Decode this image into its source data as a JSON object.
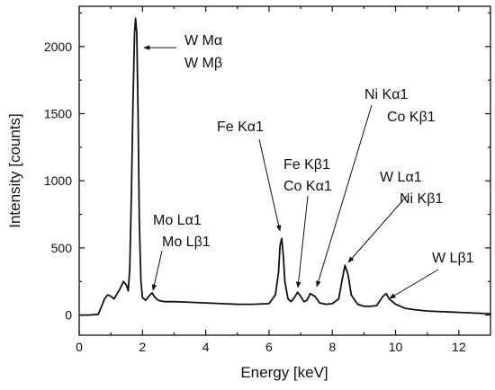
{
  "chart_data": {
    "type": "line",
    "title": "",
    "xlabel": "Energy [keV]",
    "ylabel": "Intensity [counts]",
    "xlim": [
      0,
      13
    ],
    "ylim": [
      -150,
      2300
    ],
    "xticks": [
      0,
      2,
      4,
      6,
      8,
      10,
      12
    ],
    "yticks": [
      0,
      500,
      1000,
      1500,
      2000
    ],
    "grid": false,
    "legend": "none",
    "series": [
      {
        "x": [
          0,
          0.3,
          0.6,
          0.7,
          0.8,
          0.9,
          1.0,
          1.1,
          1.2,
          1.3,
          1.4,
          1.5,
          1.55,
          1.6,
          1.65,
          1.7,
          1.75,
          1.78,
          1.82,
          1.86,
          1.9,
          1.95,
          2.0,
          2.05,
          2.1,
          2.2,
          2.3,
          2.4,
          2.5,
          2.7,
          3.0,
          3.5,
          4.0,
          4.5,
          5.0,
          5.5,
          6.0,
          6.2,
          6.3,
          6.35,
          6.4,
          6.45,
          6.5,
          6.6,
          6.7,
          6.8,
          6.9,
          7.0,
          7.1,
          7.2,
          7.3,
          7.45,
          7.6,
          7.8,
          8.0,
          8.2,
          8.3,
          8.4,
          8.5,
          8.6,
          8.8,
          9.0,
          9.2,
          9.4,
          9.6,
          9.7,
          9.8,
          10.0,
          10.3,
          10.6,
          11.0,
          11.5,
          12.0,
          12.5,
          13.0
        ],
        "values": [
          0,
          0,
          5,
          60,
          120,
          150,
          140,
          120,
          160,
          200,
          250,
          220,
          180,
          350,
          900,
          1600,
          2100,
          2210,
          2100,
          1500,
          700,
          250,
          130,
          120,
          110,
          140,
          165,
          130,
          110,
          100,
          100,
          95,
          90,
          85,
          80,
          80,
          85,
          150,
          320,
          520,
          570,
          450,
          250,
          120,
          100,
          130,
          170,
          140,
          100,
          110,
          160,
          140,
          90,
          80,
          85,
          120,
          250,
          370,
          300,
          150,
          80,
          65,
          65,
          70,
          140,
          160,
          120,
          80,
          50,
          40,
          30,
          25,
          20,
          15,
          10
        ]
      }
    ],
    "annotations": [
      {
        "line1": "W Mα",
        "line2": "W Mβ"
      },
      {
        "line1": "Mo Lα1",
        "line2": "Mo Lβ1"
      },
      {
        "line1": "Fe Kα1",
        "line2": ""
      },
      {
        "line1": "Fe Kβ1",
        "line2": "Co Kα1"
      },
      {
        "line1": "Ni Kα1",
        "line2": "Co Kβ1"
      },
      {
        "line1": "W Lα1",
        "line2": "Ni Kβ1"
      },
      {
        "line1": "W Lβ1",
        "line2": ""
      }
    ]
  }
}
